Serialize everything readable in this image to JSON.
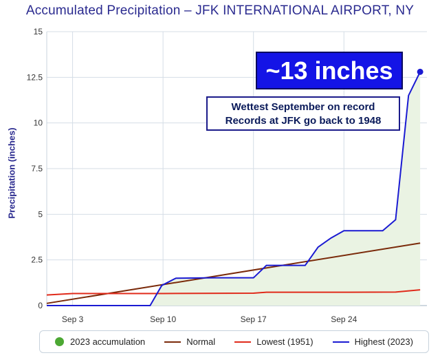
{
  "title": "Accumulated Precipitation – JFK INTERNATIONAL AIRPORT, NY",
  "callouts": {
    "big": "~13 inches",
    "line1": "Wettest September on record",
    "line2": "Records at JFK go back to 1948"
  },
  "colors": {
    "fill": "#eaf3e3",
    "normal": "#7a2a0a",
    "lowest": "#e02a1a",
    "highest": "#1a1ad2",
    "legend_dot": "#4ca833"
  },
  "chart_data": {
    "type": "line",
    "title": "Accumulated Precipitation – JFK INTERNATIONAL AIRPORT, NY",
    "xlabel": "",
    "ylabel": "Precipitation (inches)",
    "xlim": [
      1,
      30
    ],
    "ylim": [
      0,
      15
    ],
    "y_ticks": [
      0,
      2.5,
      5,
      7.5,
      10,
      12.5,
      15
    ],
    "y_tick_labels": [
      "0",
      "2.5",
      "5",
      "7.5",
      "10",
      "12.5",
      "15"
    ],
    "x_ticks": [
      3,
      10,
      17,
      24
    ],
    "x_tick_labels": [
      "Sep 3",
      "Sep 10",
      "Sep 17",
      "Sep 24"
    ],
    "series": [
      {
        "name": "2023 accumulation",
        "style": "area",
        "x": [
          1,
          9,
          9.9,
          11,
          14,
          17,
          18,
          21,
          22,
          23,
          24,
          27,
          28,
          29,
          29.9
        ],
        "values": [
          0,
          0,
          1.1,
          1.5,
          1.52,
          1.52,
          2.2,
          2.2,
          3.2,
          3.7,
          4.1,
          4.1,
          4.7,
          11.5,
          12.8
        ]
      },
      {
        "name": "Normal",
        "style": "line",
        "x": [
          1,
          29.9
        ],
        "values": [
          0.12,
          3.42
        ]
      },
      {
        "name": "Lowest (1951)",
        "style": "line",
        "x": [
          1,
          3,
          10,
          17,
          18,
          24,
          28,
          29.9
        ],
        "values": [
          0.58,
          0.66,
          0.66,
          0.68,
          0.73,
          0.73,
          0.74,
          0.86
        ]
      },
      {
        "name": "Highest (2023)",
        "style": "line",
        "x": [
          1,
          9,
          9.9,
          11,
          14,
          17,
          18,
          21,
          22,
          23,
          24,
          27,
          28,
          29,
          29.9
        ],
        "values": [
          0,
          0,
          1.1,
          1.5,
          1.52,
          1.52,
          2.2,
          2.2,
          3.2,
          3.7,
          4.1,
          4.1,
          4.7,
          11.5,
          12.8
        ]
      }
    ],
    "annotation": {
      "x": 29.9,
      "value": 12.8
    }
  },
  "legend": {
    "accumulation": "2023 accumulation",
    "normal": "Normal",
    "lowest": "Lowest (1951)",
    "highest": "Highest (2023)"
  }
}
